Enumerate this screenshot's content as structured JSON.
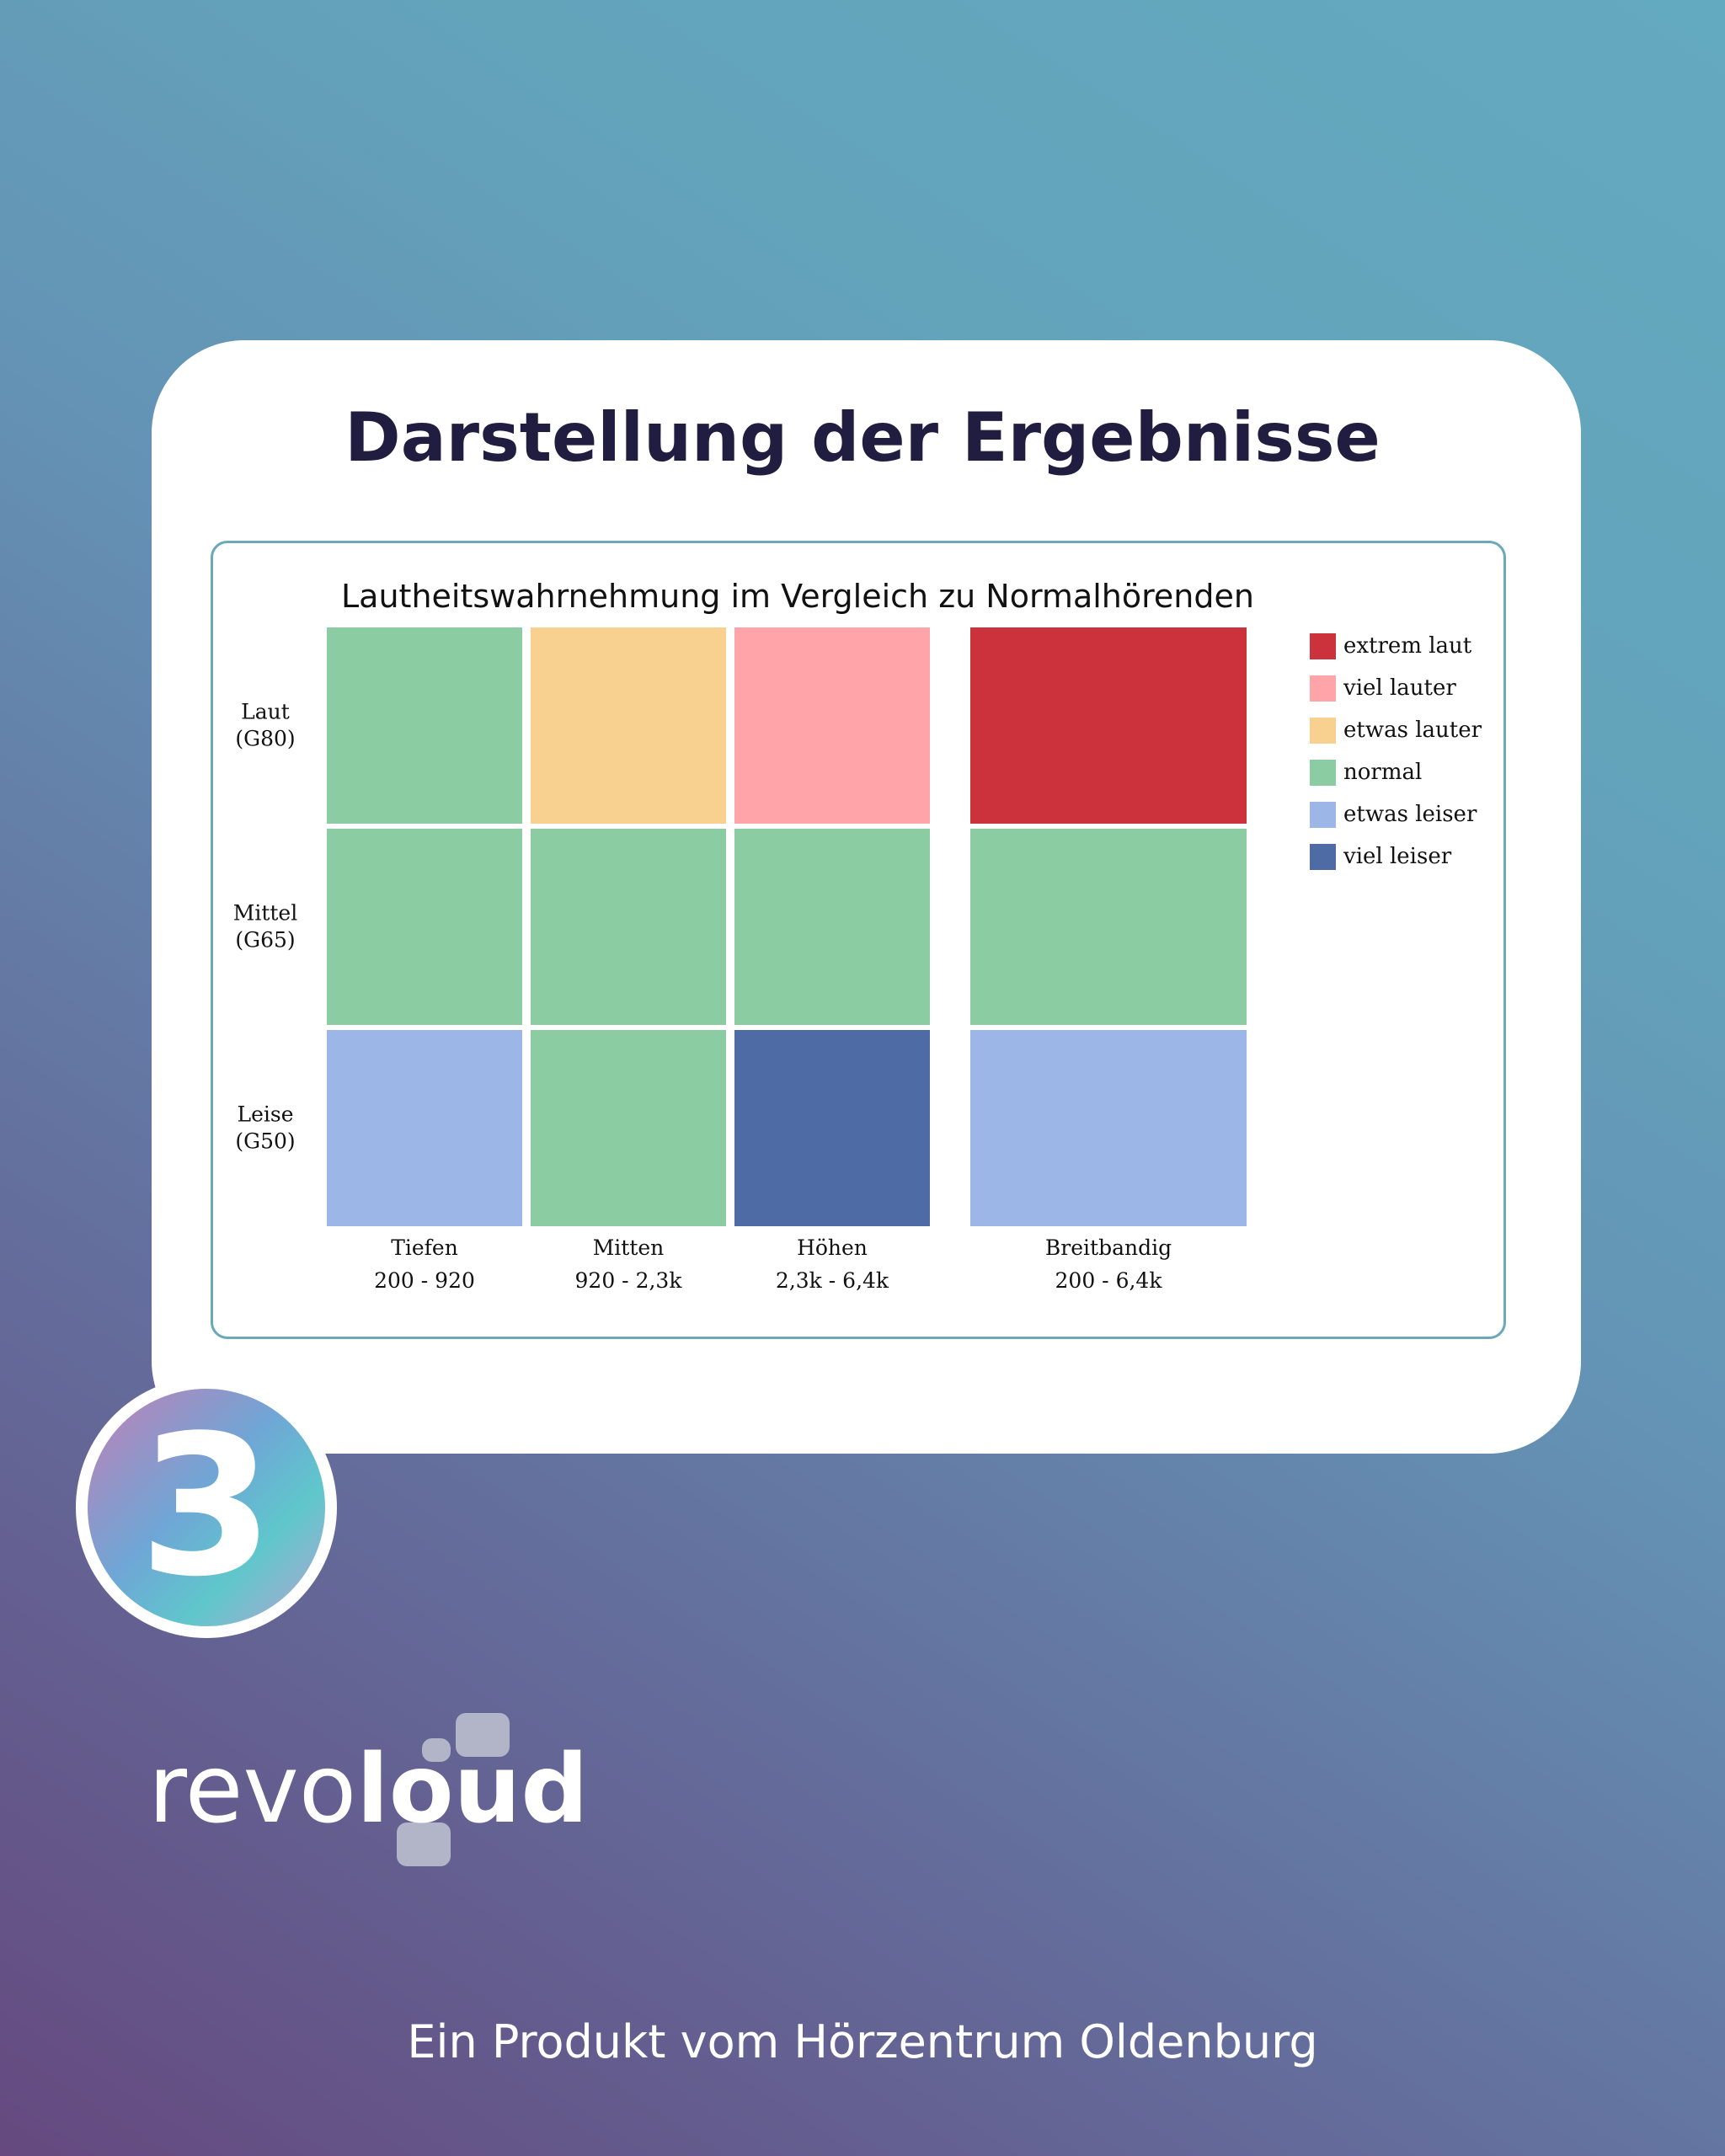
{
  "headline": "Darstellung der Ergebnisse",
  "step_number": "3",
  "logo": {
    "text_light": "revo",
    "text_bold": "loud"
  },
  "footer": "Ein Produkt vom Hörzentrum Oldenburg",
  "colors": {
    "extrem laut": "#cc323c",
    "viel lauter": "#ffa5aa",
    "etwas lauter": "#f8d08f",
    "normal": "#8bcca2",
    "etwas leiser": "#9cb7e7",
    "viel leiser": "#4e6ba6"
  },
  "chart_data": {
    "type": "heatmap",
    "title": "Lautheitswahrnehmung im Vergleich zu Normalhörenden",
    "columns": [
      {
        "name": "Tiefen",
        "range": "200 - 920"
      },
      {
        "name": "Mitten",
        "range": "920 - 2,3k"
      },
      {
        "name": "Höhen",
        "range": "2,3k - 6,4k"
      },
      {
        "name": "Breitbandig",
        "range": "200 - 6,4k"
      }
    ],
    "rows": [
      {
        "name": "Laut",
        "level": "(G80)"
      },
      {
        "name": "Mittel",
        "level": "(G65)"
      },
      {
        "name": "Leise",
        "level": "(G50)"
      }
    ],
    "values": [
      [
        "normal",
        "etwas lauter",
        "viel lauter",
        "extrem laut"
      ],
      [
        "normal",
        "normal",
        "normal",
        "normal"
      ],
      [
        "etwas leiser",
        "normal",
        "viel leiser",
        "etwas leiser"
      ]
    ],
    "legend": [
      "extrem laut",
      "viel lauter",
      "etwas lauter",
      "normal",
      "etwas leiser",
      "viel leiser"
    ],
    "legend_position": "right"
  }
}
